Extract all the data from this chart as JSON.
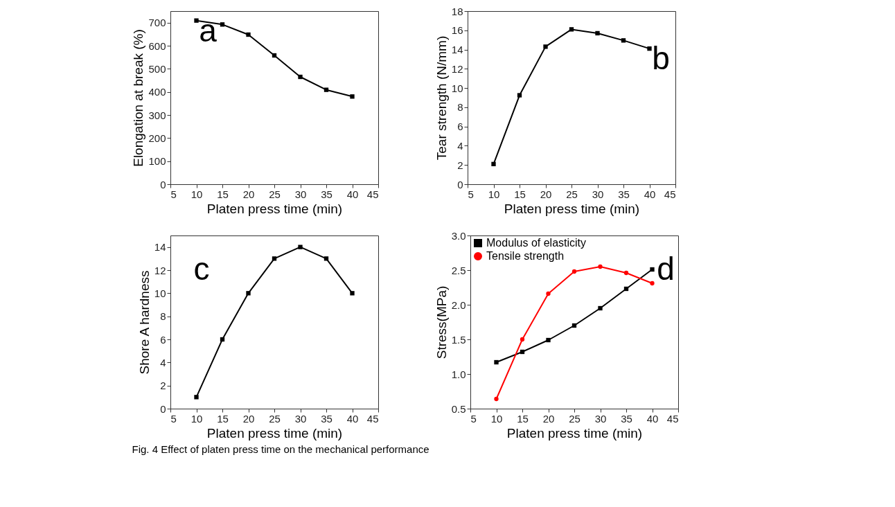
{
  "chart_data": [
    {
      "type": "line",
      "xlabel": "Platen press time (min)",
      "ylabel": "Elongation at break (%)",
      "x": [
        10,
        15,
        20,
        25,
        30,
        35,
        40
      ],
      "xlim": [
        5,
        45
      ],
      "xticks": [
        5,
        10,
        15,
        20,
        25,
        30,
        35,
        40,
        45
      ],
      "ylim": [
        0,
        750
      ],
      "yticks": [
        0,
        100,
        200,
        300,
        400,
        500,
        600,
        700
      ],
      "grid": false,
      "marker": "square",
      "line_style": "solid",
      "annotations": [
        "a"
      ],
      "series": [
        {
          "color": "#000000",
          "values": [
            709,
            692,
            648,
            558,
            465,
            409,
            380
          ]
        }
      ]
    },
    {
      "type": "line",
      "xlabel": "Platen press time (min)",
      "ylabel": "Tear strength (N/mm)",
      "x": [
        10,
        15,
        20,
        25,
        30,
        35,
        40
      ],
      "xlim": [
        5,
        45
      ],
      "xticks": [
        5,
        10,
        15,
        20,
        25,
        30,
        35,
        40,
        45
      ],
      "ylim": [
        0,
        18
      ],
      "yticks": [
        0,
        2,
        4,
        6,
        8,
        10,
        12,
        14,
        16,
        18
      ],
      "grid": false,
      "marker": "square",
      "line_style": "solid",
      "annotations": [
        "b"
      ],
      "series": [
        {
          "color": "#000000",
          "values": [
            2.1,
            9.25,
            14.3,
            16.1,
            15.7,
            14.95,
            14.1
          ]
        }
      ]
    },
    {
      "type": "line",
      "xlabel": "Platen press time (min)",
      "ylabel": "Shore A hardness",
      "x": [
        10,
        15,
        20,
        25,
        30,
        35,
        40
      ],
      "xlim": [
        5,
        45
      ],
      "xticks": [
        5,
        10,
        15,
        20,
        25,
        30,
        35,
        40,
        45
      ],
      "ylim": [
        0,
        15
      ],
      "yticks": [
        0,
        2,
        4,
        6,
        8,
        10,
        12,
        14
      ],
      "grid": false,
      "marker": "square",
      "line_style": "solid",
      "annotations": [
        "c"
      ],
      "series": [
        {
          "color": "#000000",
          "values": [
            1,
            6,
            10,
            13,
            14,
            13,
            10
          ]
        }
      ]
    },
    {
      "type": "line",
      "xlabel": "Platen press time (min)",
      "ylabel": "Stress(MPa)",
      "x": [
        10,
        15,
        20,
        25,
        30,
        35,
        40
      ],
      "xlim": [
        5,
        45
      ],
      "xticks": [
        5,
        10,
        15,
        20,
        25,
        30,
        35,
        40,
        45
      ],
      "ylim": [
        0.5,
        3.0
      ],
      "yticks": [
        {
          "value": 0.5,
          "label": "0.5"
        },
        {
          "value": 1.0,
          "label": "1.0"
        },
        1.5,
        {
          "value": 2.0,
          "label": "2.0"
        },
        2.5,
        {
          "value": 3.0,
          "label": "3.0"
        }
      ],
      "grid": false,
      "line_style": "solid",
      "legend": "top left",
      "annotations": [
        "d",
        "Fig. 4 Effect of platen press time on the mechanical performance"
      ],
      "series": [
        {
          "name": "Modulus of elasticity",
          "color": "#000000",
          "marker": "square",
          "values": [
            1.17,
            1.32,
            1.49,
            1.7,
            1.95,
            2.23,
            2.51
          ]
        },
        {
          "name": "Tensile strength",
          "color": "#ff0000",
          "marker": "circle",
          "values": [
            0.64,
            1.5,
            2.16,
            2.48,
            2.55,
            2.46,
            2.31
          ]
        }
      ]
    }
  ]
}
